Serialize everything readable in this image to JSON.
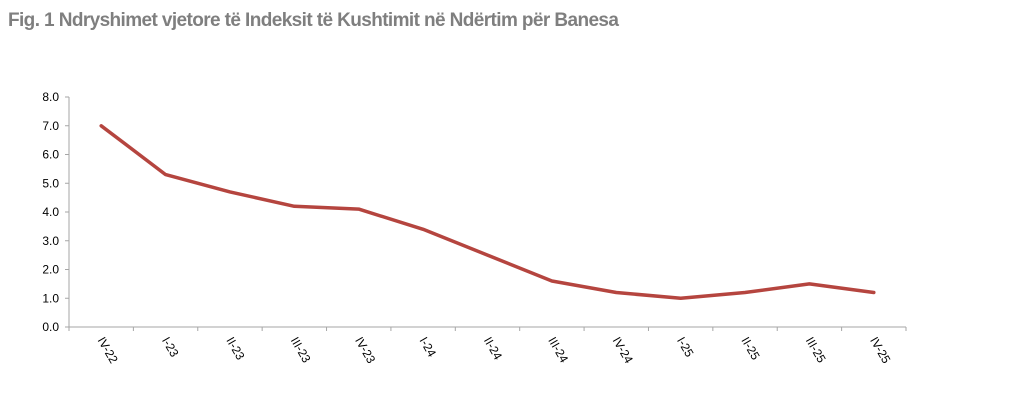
{
  "title": "Fig. 1 Ndryshimet vjetore të Indeksit të Kushtimit në Ndërtim për Banesa",
  "chart_data": {
    "type": "line",
    "title": "Fig. 1 Ndryshimet vjetore të Indeksit të Kushtimit në Ndërtim për Banesa",
    "categories": [
      "IV-22",
      "I-23",
      "II-23",
      "III-23",
      "IV-23",
      "I-24",
      "II-24",
      "III-24",
      "IV-24",
      "I-25",
      "II-25",
      "III-25",
      "IV-25"
    ],
    "series": [
      {
        "values": [
          7.0,
          5.3,
          4.7,
          4.2,
          4.1,
          3.4,
          2.5,
          1.6,
          1.2,
          1.0,
          1.2,
          1.5,
          1.2
        ],
        "color": "#b5453f"
      }
    ],
    "ylim": [
      0,
      8
    ],
    "yticks": [
      "0.0",
      "1.0",
      "2.0",
      "3.0",
      "4.0",
      "5.0",
      "6.0",
      "7.0",
      "8.0"
    ],
    "xlabel": "",
    "ylabel": "",
    "grid": false,
    "legend": "none"
  }
}
